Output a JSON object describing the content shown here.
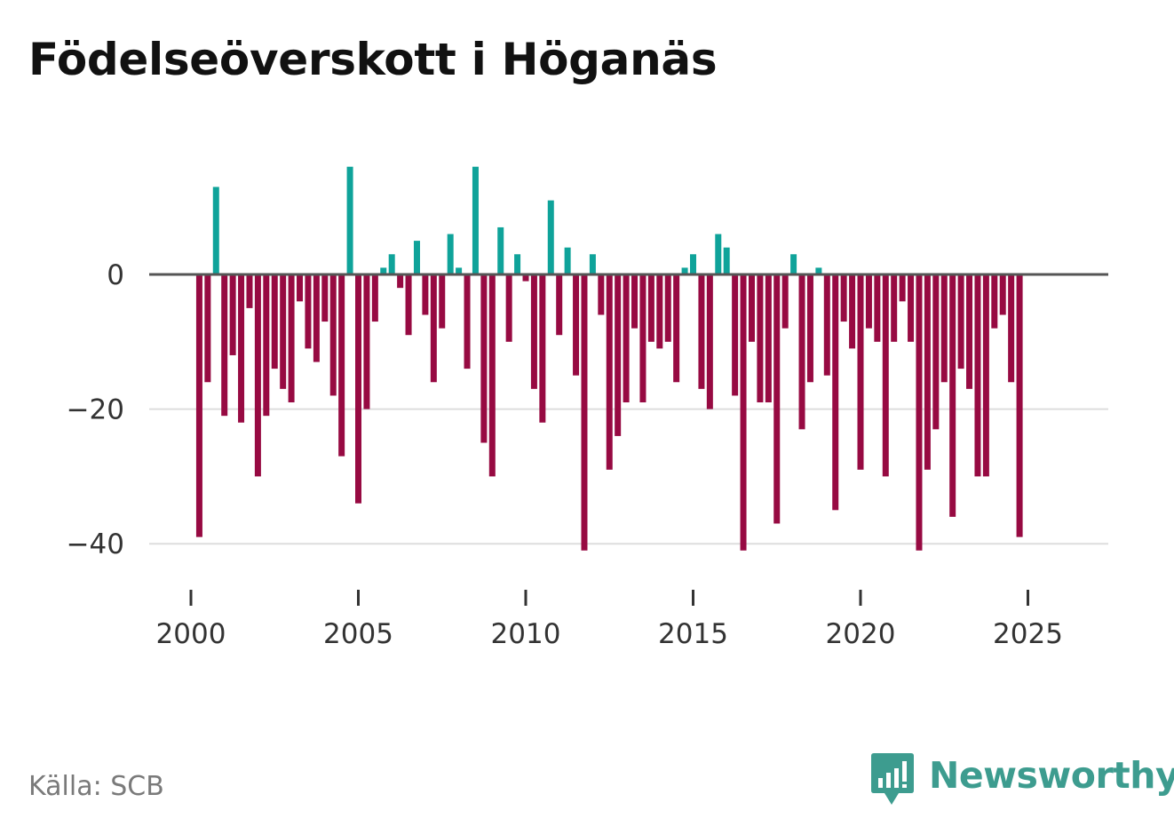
{
  "title": "Födelseöverskott i Höganäs",
  "source": "Källa: SCB",
  "brand": "Newsworthy",
  "colors": {
    "positive": "#0fa39a",
    "negative": "#970a42",
    "zero_line": "#555555",
    "grid": "#dddddd",
    "brand": "#3d9c8f"
  },
  "chart_data": {
    "type": "bar",
    "title": "Födelseöverskott i Höganäs",
    "xlabel": "",
    "ylabel": "",
    "frequency": "quarterly",
    "x_start": 2000.25,
    "x_step": 0.25,
    "xlim": [
      1999.9,
      2027.1
    ],
    "ylim": [
      -44,
      18
    ],
    "grid": true,
    "yticks": [
      0,
      -20,
      -40
    ],
    "ytick_labels": [
      "0",
      "−20",
      "−40"
    ],
    "xticks": [
      2000,
      2005,
      2010,
      2015,
      2020,
      2025
    ],
    "xtick_labels": [
      "2000",
      "2005",
      "2010",
      "2015",
      "2020",
      "2025"
    ],
    "values": [
      -39,
      -16,
      13,
      -21,
      -12,
      -22,
      -5,
      -30,
      -21,
      -14,
      -17,
      -19,
      -4,
      -11,
      -13,
      -7,
      -18,
      -27,
      16,
      -34,
      -20,
      -7,
      1,
      3,
      -2,
      -9,
      5,
      -6,
      -16,
      -8,
      6,
      1,
      -14,
      16,
      -25,
      -30,
      7,
      -10,
      3,
      -1,
      -17,
      -22,
      11,
      -9,
      4,
      -15,
      -41,
      3,
      -6,
      -29,
      -24,
      -19,
      -8,
      -19,
      -10,
      -11,
      -10,
      -16,
      1,
      3,
      -17,
      -20,
      6,
      4,
      -18,
      -41,
      -10,
      -19,
      -19,
      -37,
      -8,
      3,
      -23,
      -16,
      1,
      -15,
      -35,
      -7,
      -11,
      -29,
      -8,
      -10,
      -30,
      -10,
      -4,
      -10,
      -41,
      -29,
      -23,
      -16,
      -36,
      -14,
      -17,
      -30,
      -30,
      -8,
      -6,
      -16,
      -39
    ]
  }
}
